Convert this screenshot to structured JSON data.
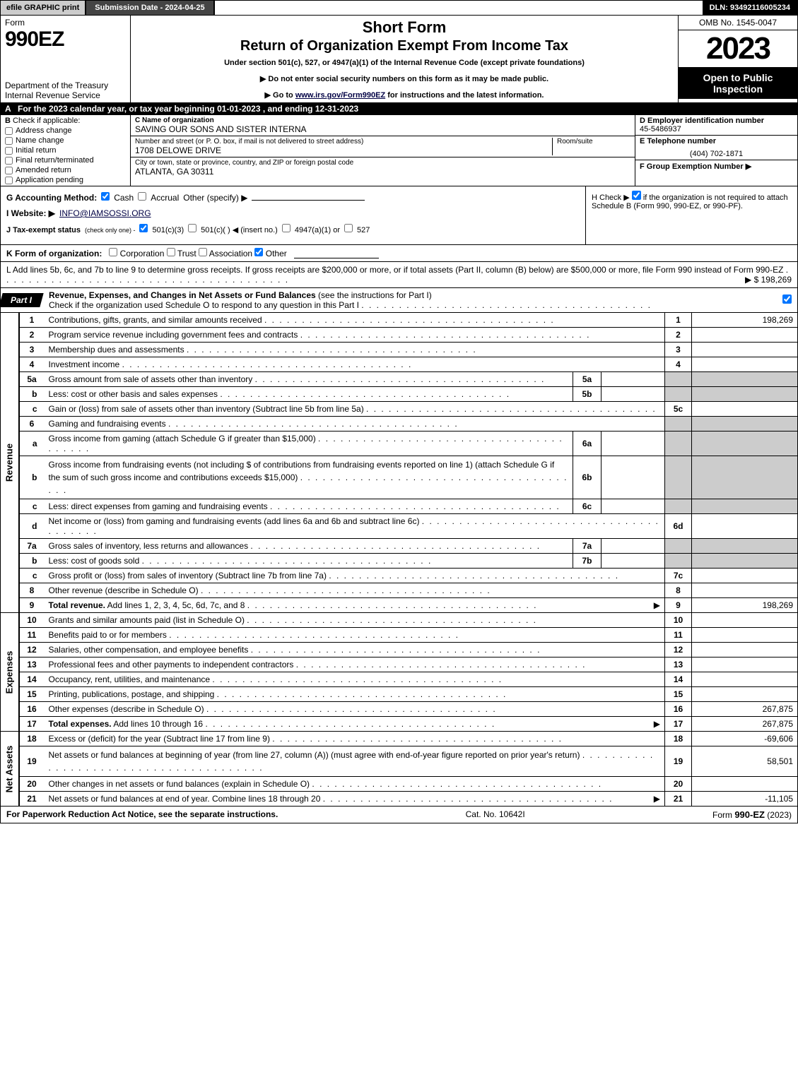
{
  "topbar": {
    "efile_label": "efile GRAPHIC print",
    "submission_label": "Submission Date - 2024-04-25",
    "dln_label": "DLN: 93492116005234"
  },
  "header": {
    "form_word": "Form",
    "form_number": "990EZ",
    "dept": "Department of the Treasury\nInternal Revenue Service",
    "title1": "Short Form",
    "title2": "Return of Organization Exempt From Income Tax",
    "subtitle": "Under section 501(c), 527, or 4947(a)(1) of the Internal Revenue Code (except private foundations)",
    "notice1": "▶ Do not enter social security numbers on this form as it may be made public.",
    "notice2_pre": "▶ Go to ",
    "notice2_link": "www.irs.gov/Form990EZ",
    "notice2_post": " for instructions and the latest information.",
    "omb": "OMB No. 1545-0047",
    "year": "2023",
    "inspect": "Open to Public Inspection"
  },
  "lineA": {
    "letter": "A",
    "text": "For the 2023 calendar year, or tax year beginning 01-01-2023 , and ending 12-31-2023"
  },
  "B": {
    "label": "Check if applicable:",
    "opts": [
      {
        "label": "Address change",
        "checked": false
      },
      {
        "label": "Name change",
        "checked": false
      },
      {
        "label": "Initial return",
        "checked": false
      },
      {
        "label": "Final return/terminated",
        "checked": false
      },
      {
        "label": "Amended return",
        "checked": false
      },
      {
        "label": "Application pending",
        "checked": false
      }
    ]
  },
  "C": {
    "name_label": "C Name of organization",
    "name": "SAVING OUR SONS AND SISTER INTERNA",
    "addr_label": "Number and street (or P. O. box, if mail is not delivered to street address)",
    "room_label": "Room/suite",
    "addr": "1708 DELOWE DRIVE",
    "city_label": "City or town, state or province, country, and ZIP or foreign postal code",
    "city": "ATLANTA, GA  30311"
  },
  "D": {
    "label": "D Employer identification number",
    "value": "45-5486937"
  },
  "E": {
    "label": "E Telephone number",
    "value": "(404) 702-1871"
  },
  "F": {
    "label": "F Group Exemption Number   ▶",
    "value": ""
  },
  "G": {
    "label": "G Accounting Method:",
    "cash": "Cash",
    "accrual": "Accrual",
    "other": "Other (specify) ▶"
  },
  "H": {
    "text_pre": "H   Check ▶ ",
    "text_post": " if the organization is not required to attach Schedule B (Form 990, 990-EZ, or 990-PF)."
  },
  "I": {
    "label": "I Website: ▶",
    "value": "INFO@IAMSOSSI.ORG"
  },
  "J": {
    "label": "J Tax-exempt status",
    "paren": "(check only one) -",
    "o1": "501(c)(3)",
    "o2": "501(c)(  ) ◀ (insert no.)",
    "o3": "4947(a)(1) or",
    "o4": "527"
  },
  "K": {
    "label": "K Form of organization:",
    "opts": [
      "Corporation",
      "Trust",
      "Association",
      "Other"
    ],
    "checked_index": 3
  },
  "L": {
    "text": "L Add lines 5b, 6c, and 7b to line 9 to determine gross receipts. If gross receipts are $200,000 or more, or if total assets (Part II, column (B) below) are $500,000 or more, file Form 990 instead of Form 990-EZ",
    "amount": "▶ $ 198,269"
  },
  "part1": {
    "tab": "Part I",
    "title_bold": "Revenue, Expenses, and Changes in Net Assets or Fund Balances",
    "title_rest": " (see the instructions for Part I)",
    "check_line": "Check if the organization used Schedule O to respond to any question in this Part I",
    "checked": true
  },
  "sections": {
    "revenue": "Revenue",
    "expenses": "Expenses",
    "netassets": "Net Assets"
  },
  "rows": [
    {
      "sec": "rev",
      "ln": "1",
      "desc": "Contributions, gifts, grants, and similar amounts received",
      "num": "1",
      "val": "198,269"
    },
    {
      "sec": "rev",
      "ln": "2",
      "desc": "Program service revenue including government fees and contracts",
      "num": "2",
      "val": ""
    },
    {
      "sec": "rev",
      "ln": "3",
      "desc": "Membership dues and assessments",
      "num": "3",
      "val": ""
    },
    {
      "sec": "rev",
      "ln": "4",
      "desc": "Investment income",
      "num": "4",
      "val": ""
    },
    {
      "sec": "rev",
      "ln": "5a",
      "desc": "Gross amount from sale of assets other than inventory",
      "mini": "5a",
      "shade_val": true
    },
    {
      "sec": "rev",
      "ln": "b",
      "sub": true,
      "desc": "Less: cost or other basis and sales expenses",
      "mini": "5b",
      "shade_val": true
    },
    {
      "sec": "rev",
      "ln": "c",
      "sub": true,
      "desc": "Gain or (loss) from sale of assets other than inventory (Subtract line 5b from line 5a)",
      "num": "5c",
      "val": ""
    },
    {
      "sec": "rev",
      "ln": "6",
      "desc": "Gaming and fundraising events",
      "shade_num": true,
      "shade_val": true
    },
    {
      "sec": "rev",
      "ln": "a",
      "sub": true,
      "desc": "Gross income from gaming (attach Schedule G if greater than $15,000)",
      "mini": "6a",
      "shade_val": true
    },
    {
      "sec": "rev",
      "ln": "b",
      "sub": true,
      "desc": "Gross income from fundraising events (not including $                    of contributions from fundraising events reported on line 1) (attach Schedule G if the sum of such gross income and contributions exceeds $15,000)",
      "mini": "6b",
      "shade_val": true,
      "tall": true
    },
    {
      "sec": "rev",
      "ln": "c",
      "sub": true,
      "desc": "Less: direct expenses from gaming and fundraising events",
      "mini": "6c",
      "shade_val": true
    },
    {
      "sec": "rev",
      "ln": "d",
      "sub": true,
      "desc": "Net income or (loss) from gaming and fundraising events (add lines 6a and 6b and subtract line 6c)",
      "num": "6d",
      "val": ""
    },
    {
      "sec": "rev",
      "ln": "7a",
      "desc": "Gross sales of inventory, less returns and allowances",
      "mini": "7a",
      "shade_val": true
    },
    {
      "sec": "rev",
      "ln": "b",
      "sub": true,
      "desc": "Less: cost of goods sold",
      "mini": "7b",
      "shade_val": true
    },
    {
      "sec": "rev",
      "ln": "c",
      "sub": true,
      "desc": "Gross profit or (loss) from sales of inventory (Subtract line 7b from line 7a)",
      "num": "7c",
      "val": ""
    },
    {
      "sec": "rev",
      "ln": "8",
      "desc": "Other revenue (describe in Schedule O)",
      "num": "8",
      "val": ""
    },
    {
      "sec": "rev",
      "ln": "9",
      "desc": "Total revenue. Add lines 1, 2, 3, 4, 5c, 6d, 7c, and 8",
      "num": "9",
      "val": "198,269",
      "bold": true,
      "arrow": true
    },
    {
      "sec": "exp",
      "ln": "10",
      "desc": "Grants and similar amounts paid (list in Schedule O)",
      "num": "10",
      "val": ""
    },
    {
      "sec": "exp",
      "ln": "11",
      "desc": "Benefits paid to or for members",
      "num": "11",
      "val": ""
    },
    {
      "sec": "exp",
      "ln": "12",
      "desc": "Salaries, other compensation, and employee benefits",
      "num": "12",
      "val": ""
    },
    {
      "sec": "exp",
      "ln": "13",
      "desc": "Professional fees and other payments to independent contractors",
      "num": "13",
      "val": ""
    },
    {
      "sec": "exp",
      "ln": "14",
      "desc": "Occupancy, rent, utilities, and maintenance",
      "num": "14",
      "val": ""
    },
    {
      "sec": "exp",
      "ln": "15",
      "desc": "Printing, publications, postage, and shipping",
      "num": "15",
      "val": ""
    },
    {
      "sec": "exp",
      "ln": "16",
      "desc": "Other expenses (describe in Schedule O)",
      "num": "16",
      "val": "267,875"
    },
    {
      "sec": "exp",
      "ln": "17",
      "desc": "Total expenses. Add lines 10 through 16",
      "num": "17",
      "val": "267,875",
      "bold": true,
      "arrow": true
    },
    {
      "sec": "net",
      "ln": "18",
      "desc": "Excess or (deficit) for the year (Subtract line 17 from line 9)",
      "num": "18",
      "val": "-69,606"
    },
    {
      "sec": "net",
      "ln": "19",
      "desc": "Net assets or fund balances at beginning of year (from line 27, column (A)) (must agree with end-of-year figure reported on prior year's return)",
      "num": "19",
      "val": "58,501",
      "tall": true
    },
    {
      "sec": "net",
      "ln": "20",
      "desc": "Other changes in net assets or fund balances (explain in Schedule O)",
      "num": "20",
      "val": ""
    },
    {
      "sec": "net",
      "ln": "21",
      "desc": "Net assets or fund balances at end of year. Combine lines 18 through 20",
      "num": "21",
      "val": "-11,105",
      "arrow": true
    }
  ],
  "footer": {
    "left": "For Paperwork Reduction Act Notice, see the separate instructions.",
    "mid": "Cat. No. 10642I",
    "right_pre": "Form ",
    "right_bold": "990-EZ",
    "right_post": " (2023)"
  },
  "colors": {
    "topbar_gray": "#cccccc",
    "topbar_dark": "#444444",
    "black": "#000000",
    "shade": "#cccccc"
  }
}
